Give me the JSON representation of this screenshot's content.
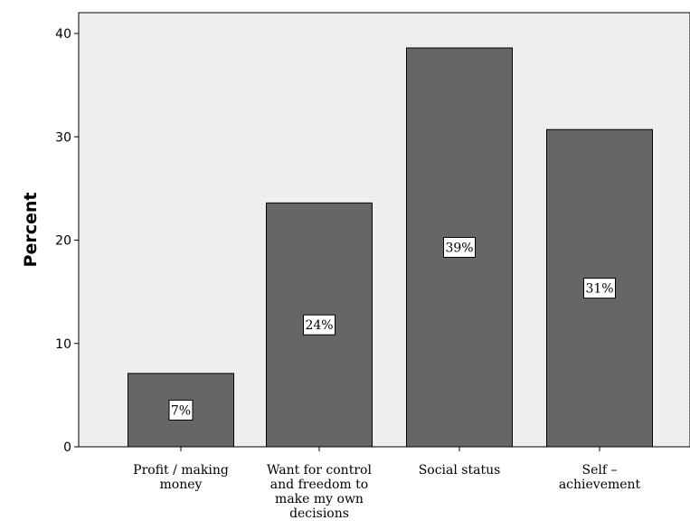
{
  "chart_data": {
    "type": "bar",
    "title": "",
    "xlabel": "",
    "ylabel": "Percent",
    "ylim": [
      0,
      40
    ],
    "yticks": [
      0,
      10,
      20,
      30,
      40
    ],
    "categories": [
      [
        "Profit / making",
        "money"
      ],
      [
        "Want for control",
        "and freedom to",
        "make my own",
        "decisions"
      ],
      [
        "Social status"
      ],
      [
        "Self –",
        "achievement"
      ]
    ],
    "values": [
      7.1,
      23.6,
      38.6,
      30.7
    ],
    "data_labels": [
      "7%",
      "24%",
      "39%",
      "31%"
    ],
    "colors": {
      "bar_fill": "#666666",
      "bar_stroke": "#000000",
      "plot_background": "#f0f0f0",
      "label_box": "#ffffff"
    }
  }
}
